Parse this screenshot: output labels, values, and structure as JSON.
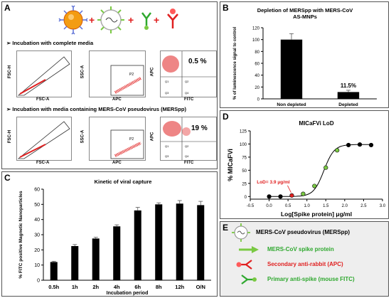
{
  "panelA": {
    "label": "A",
    "section1_title": "Incubation with complete media",
    "section2_title": "Incubation with media containing MERS-CoV pseudovirus (MERSpp)",
    "axes": {
      "fsc_h": "FSC-H",
      "fsc_a": "FSC-A",
      "ssc_a": "SSC-A",
      "apc": "APC",
      "fitc": "FITC",
      "p2": "P2",
      "q1": "Q1",
      "q2": "Q2",
      "q3": "Q3",
      "q4": "Q4"
    },
    "pct1": "0.5 %",
    "pct2": "19 %"
  },
  "panelB": {
    "label": "B",
    "title_line1": "Depletion of MERSpp with MERS-CoV",
    "title_line2": "AS-MNPs",
    "ylabel": "% of luminescence signal to control",
    "data_label": "11.5%"
  },
  "panelC": {
    "label": "C",
    "title": "Kinetic of viral capture",
    "ylabel": "% FITC positive Magnetic Nanoparticles",
    "xlabel": "Incubation period"
  },
  "panelD": {
    "label": "D",
    "title": "MICaFVi LoD",
    "ylabel": "% MICaFVi",
    "xlabel": "Log[Spike protein] μg/ml",
    "lod_label": "LoD= 3.9 μg/ml"
  },
  "panelE": {
    "label": "E",
    "items": [
      {
        "text": "MERS-CoV pseudovirus (MERSpp)",
        "color": "#000000"
      },
      {
        "text": "MERS-CoV spike protein",
        "color": "#2ea82e"
      },
      {
        "text": "Secondary anti-rabbit (APC)",
        "color": "#e02020"
      },
      {
        "text": "Primary anti-spike (mouse FITC)",
        "color": "#2ea82e"
      }
    ]
  },
  "chart_data": [
    {
      "type": "bar",
      "title": "Depletion of MERSpp with MERS-CoV AS-MNPs",
      "xlabel": "",
      "ylabel": "% of luminescence signal to control",
      "categories": [
        "Non depleted",
        "Depleted"
      ],
      "values": [
        100,
        11.5
      ],
      "errors": [
        10,
        3
      ],
      "ylim": [
        0,
        120
      ],
      "yticks": [
        0,
        20,
        40,
        60,
        80,
        100,
        120
      ],
      "grid": false
    },
    {
      "type": "bar",
      "title": "Kinetic of viral capture",
      "xlabel": "Incubation period",
      "ylabel": "% FITC positive Magnetic Nanoparticles",
      "categories": [
        "0.5h",
        "1h",
        "2h",
        "4h",
        "6h",
        "8h",
        "12h",
        "O/N"
      ],
      "values": [
        12,
        22.5,
        27.5,
        35.5,
        46,
        50,
        50.5,
        49.5
      ],
      "errors": [
        0.5,
        1,
        0.8,
        1,
        2,
        1,
        2,
        2.5
      ],
      "ylim": [
        0,
        60
      ],
      "yticks": [
        0,
        10,
        20,
        30,
        40,
        50,
        60
      ],
      "grid": false
    },
    {
      "type": "scatter",
      "title": "MICaFVi LoD",
      "xlabel": "Log[Spike protein] μg/ml",
      "ylabel": "% MICaFVi",
      "x": [
        0.0,
        0.3,
        0.6,
        0.9,
        1.2,
        1.5,
        1.8,
        2.1,
        2.4,
        2.7
      ],
      "y": [
        0,
        0,
        2,
        5,
        20,
        55,
        88,
        98,
        99,
        98
      ],
      "point_colors": [
        "#000000",
        "#000000",
        "#e02020",
        "#7ac943",
        "#7ac943",
        "#7ac943",
        "#7ac943",
        "#000000",
        "#000000",
        "#000000"
      ],
      "fit_curve": "sigmoidal",
      "xlim": [
        -0.5,
        3.0
      ],
      "ylim": [
        -5,
        125
      ],
      "xticks": [
        -0.5,
        0.0,
        0.5,
        1.0,
        1.5,
        2.0,
        2.5,
        3.0
      ],
      "yticks": [
        0,
        25,
        50,
        75,
        100,
        125
      ],
      "annotations": [
        "LoD= 3.9 μg/ml"
      ],
      "grid": false
    }
  ]
}
